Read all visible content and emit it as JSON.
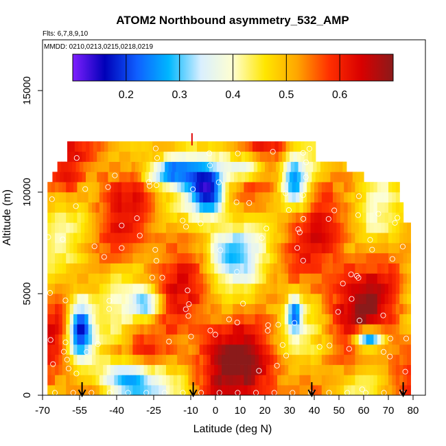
{
  "chart_data": {
    "type": "heatmap",
    "title": "ATOM2 Northbound asymmetry_532_AMP",
    "flights_label": "Flts: 6,7,8,9,10",
    "dates_label": "MMDD: 0210,0213,0215,0218,0219",
    "xlabel": "Latitude (deg N)",
    "ylabel": "Altitude (m)",
    "xlim": [
      -70,
      85
    ],
    "ylim": [
      0,
      17500
    ],
    "x_ticks": [
      -70,
      -55,
      -40,
      -25,
      -10,
      0,
      10,
      20,
      30,
      40,
      50,
      60,
      70,
      80
    ],
    "y_ticks": [
      0,
      5000,
      10000,
      15000
    ],
    "colorbar": {
      "range": [
        0.1,
        0.7
      ],
      "ticks": [
        0.2,
        0.3,
        0.4,
        0.5,
        0.6
      ],
      "colors": [
        "#7f1fff",
        "#0000b8",
        "#0f5fff",
        "#00b7ff",
        "#d9efff",
        "#ffffd0",
        "#ffe600",
        "#ffa600",
        "#ff3000",
        "#d90000",
        "#8b1a1a"
      ]
    },
    "markers_lat": [
      -54,
      -9,
      39,
      76
    ],
    "data_extent": {
      "lat_min": -68,
      "lat_max": 79,
      "alt_min": 0,
      "alt_max": 12500
    }
  }
}
